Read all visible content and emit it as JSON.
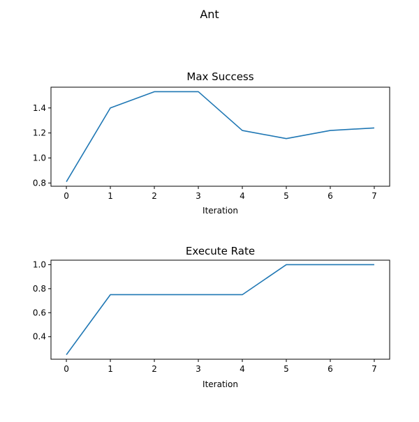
{
  "figure": {
    "suptitle": "Ant"
  },
  "chart_data": [
    {
      "type": "line",
      "title": "Max Success",
      "xlabel": "Iteration",
      "ylabel": "",
      "x": [
        0,
        1,
        2,
        3,
        4,
        5,
        6,
        7
      ],
      "series": [
        {
          "values": [
            0.81,
            1.4,
            1.53,
            1.53,
            1.22,
            1.155,
            1.22,
            1.24
          ],
          "color": "#1f77b4"
        }
      ],
      "xticks": [
        0,
        1,
        2,
        3,
        4,
        5,
        6,
        7
      ],
      "xtick_labels": [
        "0",
        "1",
        "2",
        "3",
        "4",
        "5",
        "6",
        "7"
      ],
      "yticks": [
        0.8,
        1.0,
        1.2,
        1.4
      ],
      "ytick_labels": [
        "0.8",
        "1.0",
        "1.2",
        "1.4"
      ],
      "xlim": [
        -0.35,
        7.35
      ],
      "ylim": [
        0.774,
        1.566
      ],
      "grid": false,
      "legend": "none"
    },
    {
      "type": "line",
      "title": "Execute Rate",
      "xlabel": "Iteration",
      "ylabel": "",
      "x": [
        0,
        1,
        2,
        3,
        4,
        5,
        6,
        7
      ],
      "series": [
        {
          "values": [
            0.25,
            0.75,
            0.75,
            0.75,
            0.75,
            1.0,
            1.0,
            1.0
          ],
          "color": "#1f77b4"
        }
      ],
      "xticks": [
        0,
        1,
        2,
        3,
        4,
        5,
        6,
        7
      ],
      "xtick_labels": [
        "0",
        "1",
        "2",
        "3",
        "4",
        "5",
        "6",
        "7"
      ],
      "yticks": [
        0.4,
        0.6,
        0.8,
        1.0
      ],
      "ytick_labels": [
        "0.4",
        "0.6",
        "0.8",
        "1.0"
      ],
      "xlim": [
        -0.35,
        7.35
      ],
      "ylim": [
        0.2125,
        1.0375
      ],
      "grid": false,
      "legend": "none"
    }
  ]
}
